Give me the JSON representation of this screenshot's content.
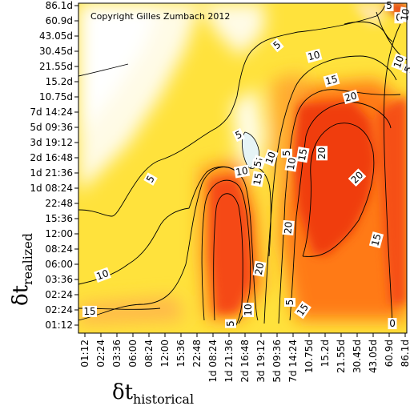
{
  "chart_data": {
    "type": "heatmap",
    "copyright": "Copyright Gilles Zumbach 2012",
    "xlabel_main": "δt",
    "xlabel_sub": "historical",
    "ylabel_main": "δt",
    "ylabel_sub": "realized",
    "x_ticks": [
      "01:12",
      "02:24",
      "03:36",
      "06:00",
      "08:24",
      "12:00",
      "15:36",
      "22:48",
      "1d 08:24",
      "1d 21:36",
      "2d 16:48",
      "3d 19:12",
      "5d 09:36",
      "7d 14:24",
      "10.75d",
      "15.2d",
      "21.55d",
      "30.45d",
      "43.05d",
      "60.9d",
      "86.1d"
    ],
    "y_ticks": [
      "01:12",
      "02:24",
      "02:24",
      "03:36",
      "06:00",
      "08:24",
      "12:00",
      "15:36",
      "22:48",
      "1d 08:24",
      "1d 21:36",
      "2d 16:48",
      "3d 19:12",
      "5d 09:36",
      "7d 14:24",
      "10.75d",
      "15.2d",
      "21.55d",
      "30.45d",
      "43.05d",
      "60.9d",
      "86.1d"
    ],
    "contour_levels": [
      0,
      5,
      10,
      15,
      20
    ],
    "contour_labels": [
      {
        "text": "5",
        "xi": 19.0,
        "yi": 21.0,
        "rot": 0
      },
      {
        "text": "0",
        "xi": 19.6,
        "yi": 20.2,
        "rot": 0
      },
      {
        "text": "10",
        "xi": 20.0,
        "yi": 20.4,
        "rot": -80
      },
      {
        "text": "10",
        "xi": 19.6,
        "yi": 17.3,
        "rot": -70
      },
      {
        "text": "5",
        "xi": 20.2,
        "yi": 16.8,
        "rot": -70
      },
      {
        "text": "5",
        "xi": 12.0,
        "yi": 18.4,
        "rot": -40
      },
      {
        "text": "10",
        "xi": 14.3,
        "yi": 17.7,
        "rot": -15
      },
      {
        "text": "15",
        "xi": 15.4,
        "yi": 16.1,
        "rot": -15
      },
      {
        "text": "20",
        "xi": 16.6,
        "yi": 15.0,
        "rot": -15
      },
      {
        "text": "5",
        "xi": 9.6,
        "yi": 12.5,
        "rot": -25
      },
      {
        "text": "5",
        "xi": 4.1,
        "yi": 9.6,
        "rot": -60
      },
      {
        "text": "10",
        "xi": 9.8,
        "yi": 10.1,
        "rot": -10
      },
      {
        "text": "15",
        "xi": 10.8,
        "yi": 9.6,
        "rot": -80
      },
      {
        "text": "20",
        "xi": 12.7,
        "yi": 6.4,
        "rot": -85
      },
      {
        "text": "20",
        "xi": 10.9,
        "yi": 3.7,
        "rot": -80
      },
      {
        "text": "10",
        "xi": 11.6,
        "yi": 11.0,
        "rot": -70
      },
      {
        "text": "5",
        "xi": 10.9,
        "yi": 10.8,
        "rot": -70
      },
      {
        "text": "5",
        "xi": 10.8,
        "yi": 10.6,
        "rot": -80
      },
      {
        "text": "10",
        "xi": 12.9,
        "yi": 10.6,
        "rot": -80
      },
      {
        "text": "20",
        "xi": 14.8,
        "yi": 11.3,
        "rot": -90
      },
      {
        "text": "15",
        "xi": 13.6,
        "yi": 11.2,
        "rot": -80
      },
      {
        "text": "5",
        "xi": 12.6,
        "yi": 11.3,
        "rot": -90
      },
      {
        "text": "20",
        "xi": 17.0,
        "yi": 9.7,
        "rot": -45
      },
      {
        "text": "15",
        "xi": 18.2,
        "yi": 5.6,
        "rot": -75
      },
      {
        "text": "10",
        "xi": 1.1,
        "yi": 3.3,
        "rot": -20
      },
      {
        "text": "10",
        "xi": 10.2,
        "yi": 1.0,
        "rot": -90
      },
      {
        "text": "5",
        "xi": 12.8,
        "yi": 1.5,
        "rot": -90
      },
      {
        "text": "15",
        "xi": 13.6,
        "yi": 1.0,
        "rot": -55
      },
      {
        "text": "15",
        "xi": 0.3,
        "yi": 0.9,
        "rot": 0
      },
      {
        "text": "5",
        "xi": 9.1,
        "yi": 0.1,
        "rot": -90
      },
      {
        "text": "0",
        "xi": 19.2,
        "yi": 0.1,
        "rot": 0
      }
    ]
  }
}
